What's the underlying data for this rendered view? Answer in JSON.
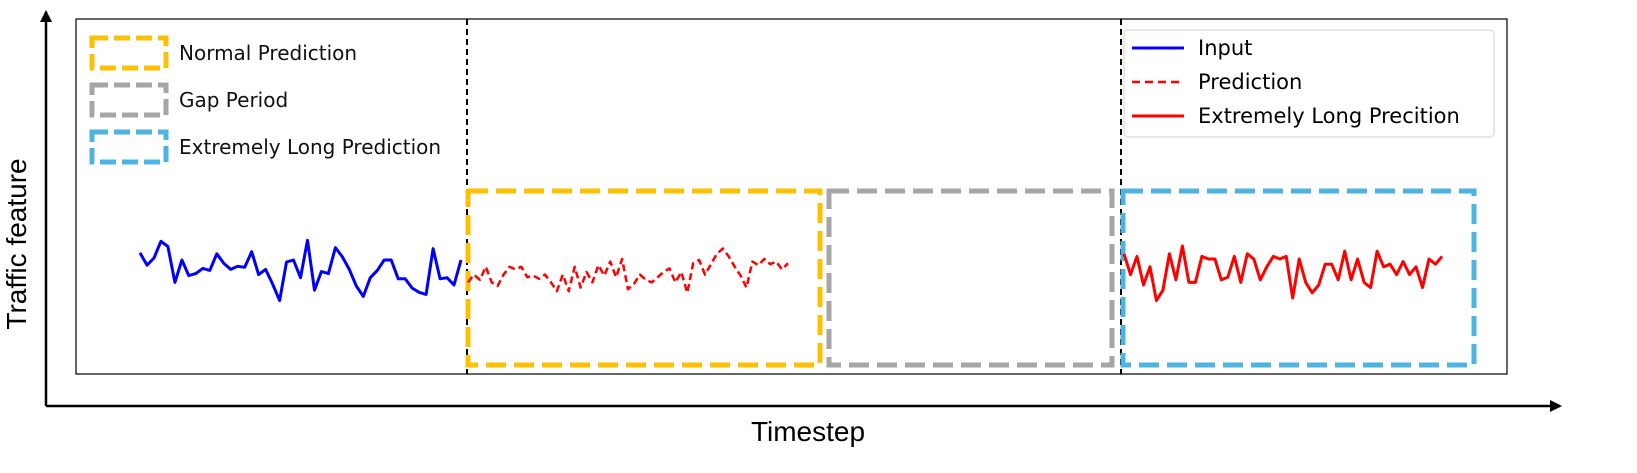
{
  "axes": {
    "xlabel": "Timestep",
    "ylabel": "Traffic feature"
  },
  "colors": {
    "normal_box": "#FFC000",
    "gap_box": "#A6A6A6",
    "long_box": "#4DB3E0",
    "input_line": "#0000FF",
    "prediction_line": "#FF0000"
  },
  "box_legend": [
    {
      "label": "Normal Prediction",
      "color": "#FFC000"
    },
    {
      "label": "Gap Period",
      "color": "#A6A6A6"
    },
    {
      "label": "Extremely Long Prediction",
      "color": "#4DB3E0"
    }
  ],
  "line_legend": [
    {
      "label": "Input",
      "color": "#0000FF",
      "style": "solid"
    },
    {
      "label": "Prediction",
      "color": "#FF0000",
      "style": "dashed"
    },
    {
      "label": "Extremely Long Precition",
      "color": "#FF0000",
      "style": "solid"
    }
  ],
  "series": {
    "input": [
      0.62,
      0.38,
      0.52,
      0.84,
      0.74,
      0.05,
      0.48,
      0.18,
      0.22,
      0.32,
      0.28,
      0.6,
      0.42,
      0.3,
      0.36,
      0.34,
      0.64,
      0.2,
      0.3,
      0.02,
      -0.3,
      0.44,
      0.48,
      0.14,
      0.86,
      -0.1,
      0.26,
      0.22,
      0.72,
      0.54,
      0.3,
      -0.02,
      -0.22,
      0.14,
      0.28,
      0.48,
      0.48,
      0.12,
      0.12,
      -0.06,
      -0.14,
      -0.18,
      0.7,
      0.12,
      0.14,
      0.0,
      0.48
    ],
    "prediction": [
      0.05,
      0.2,
      0.1,
      0.35,
      0.05,
      -0.02,
      0.2,
      0.35,
      0.3,
      0.35,
      0.15,
      0.18,
      0.12,
      0.2,
      0.05,
      -0.12,
      0.2,
      -0.12,
      0.35,
      -0.05,
      0.25,
      0.05,
      0.38,
      0.18,
      0.45,
      0.15,
      0.5,
      -0.08,
      0.02,
      0.2,
      0.1,
      0.05,
      0.15,
      0.25,
      0.32,
      0.05,
      0.25,
      -0.15,
      0.42,
      0.48,
      0.2,
      0.4,
      0.6,
      0.7,
      0.55,
      0.35,
      0.18,
      -0.05,
      0.45,
      0.38,
      0.5,
      0.4,
      0.45,
      0.3,
      0.42
    ],
    "long": [
      0.6,
      0.2,
      0.55,
      0.0,
      0.35,
      -0.3,
      -0.1,
      0.6,
      0.1,
      0.75,
      0.05,
      0.05,
      0.55,
      0.5,
      0.5,
      0.1,
      0.15,
      0.55,
      0.05,
      0.6,
      0.5,
      0.1,
      0.35,
      0.55,
      0.5,
      0.55,
      -0.25,
      0.5,
      0.05,
      -0.15,
      0.0,
      0.4,
      0.4,
      0.1,
      0.65,
      0.1,
      0.5,
      0.05,
      -0.05,
      0.65,
      0.35,
      0.4,
      0.2,
      0.45,
      0.2,
      0.35,
      -0.05,
      0.5,
      0.4,
      0.55
    ]
  }
}
